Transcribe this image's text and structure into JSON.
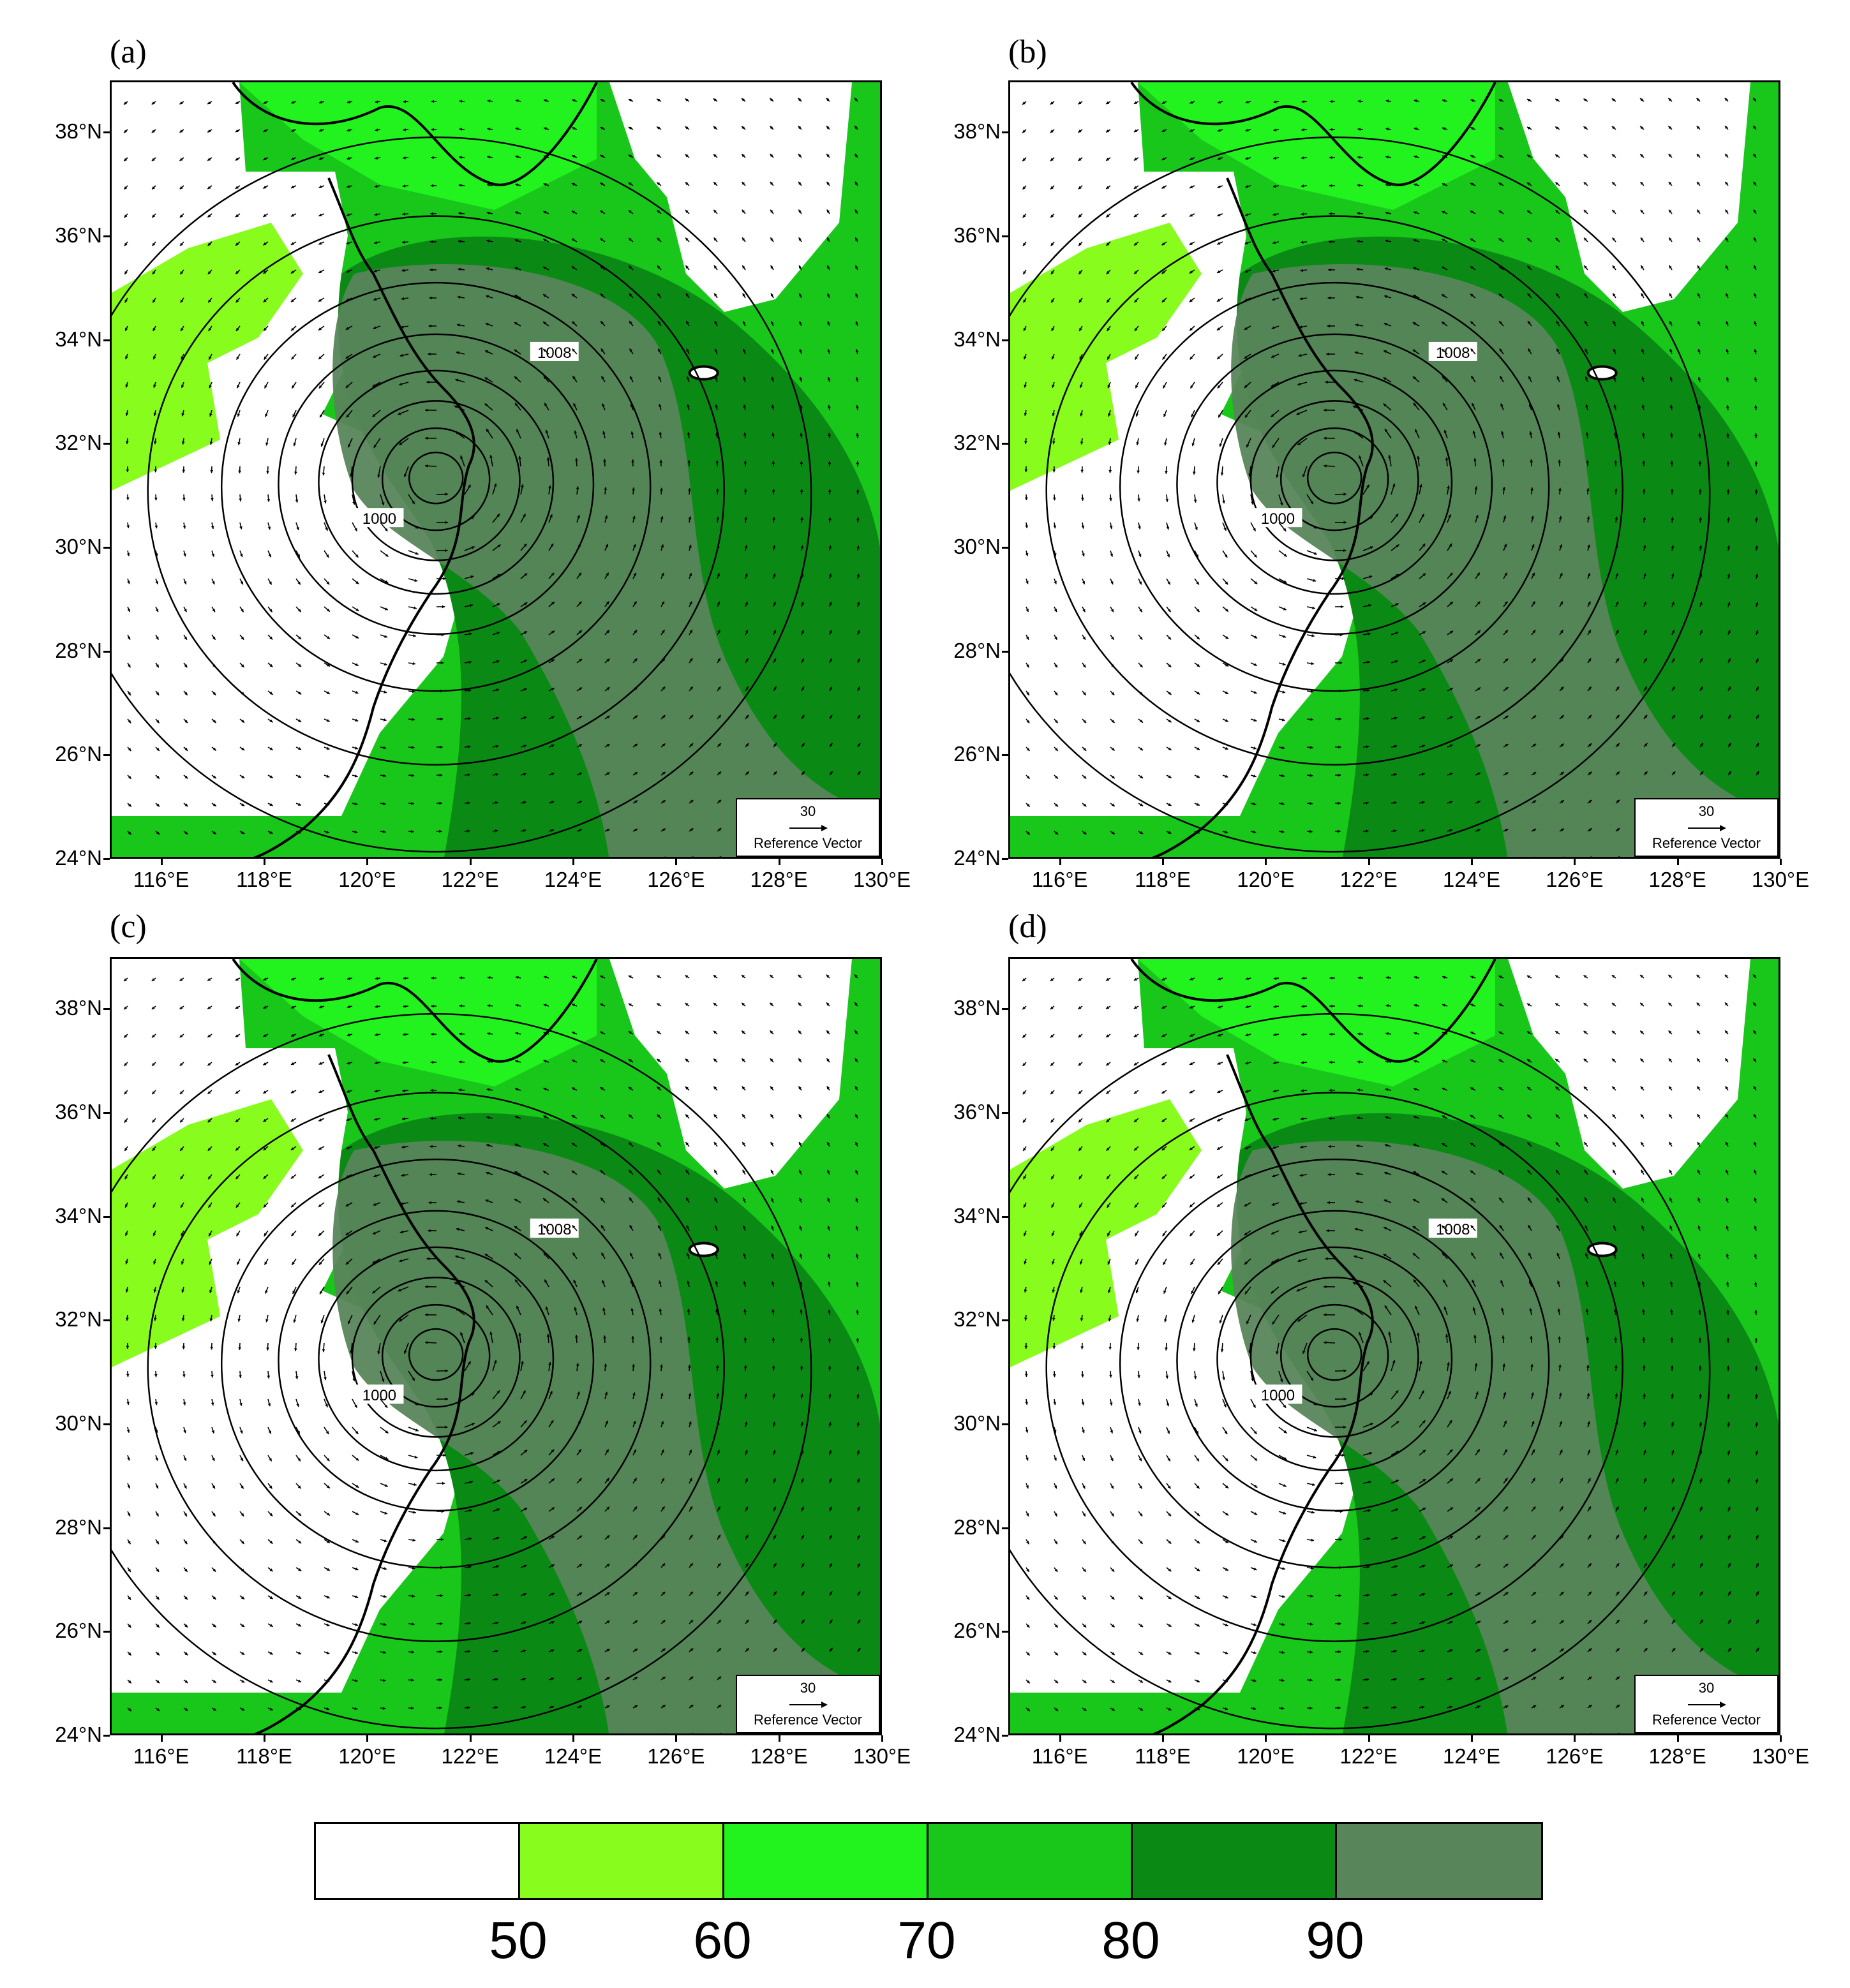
{
  "panels": [
    {
      "label": "(a)"
    },
    {
      "label": "(b)"
    },
    {
      "label": "(c)"
    },
    {
      "label": "(d)"
    }
  ],
  "lat_ticks": [
    "38°N",
    "36°N",
    "34°N",
    "32°N",
    "30°N",
    "28°N",
    "26°N",
    "24°N"
  ],
  "lon_ticks": [
    "116°E",
    "118°E",
    "120°E",
    "122°E",
    "124°E",
    "126°E",
    "128°E",
    "130°E"
  ],
  "reference_vector": {
    "value": "30",
    "label": "Reference Vector"
  },
  "contour_labels": {
    "low": "1000",
    "high": "1008"
  },
  "colorbar": {
    "colors": [
      "#ffffff",
      "#88fc1c",
      "#22f21e",
      "#18c71a",
      "#0a8a14",
      "#58855a"
    ],
    "labels": [
      "50",
      "60",
      "70",
      "80",
      "90"
    ]
  },
  "map_extent": {
    "lon": [
      115,
      130
    ],
    "lat": [
      24,
      39
    ]
  }
}
